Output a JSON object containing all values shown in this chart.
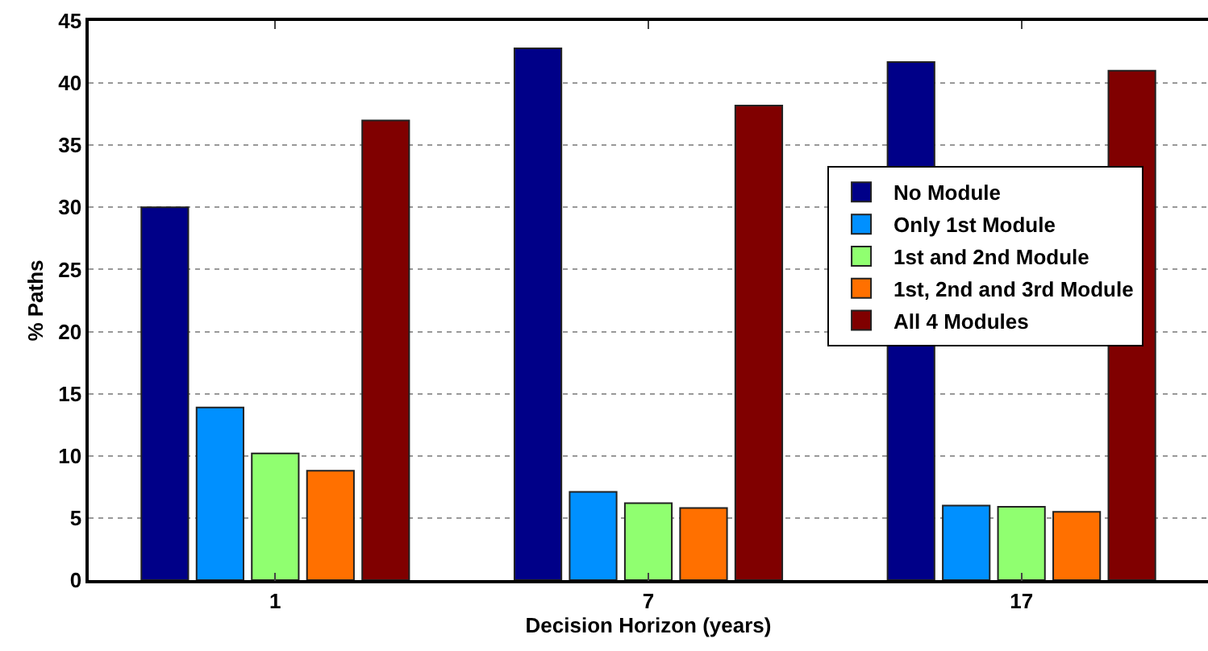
{
  "chart_data": {
    "type": "bar",
    "xlabel": "Decision Horizon (years)",
    "ylabel": "% Paths",
    "categories": [
      "1",
      "7",
      "17"
    ],
    "series": [
      {
        "name": "No Module",
        "color": "#000088",
        "values": [
          30.0,
          42.8,
          41.7
        ]
      },
      {
        "name": "Only 1st Module",
        "color": "#0090ff",
        "values": [
          13.9,
          7.1,
          6.0
        ]
      },
      {
        "name": "1st and 2nd Module",
        "color": "#90ff70",
        "values": [
          10.2,
          6.2,
          5.9
        ]
      },
      {
        "name": "1st, 2nd and 3rd Module",
        "color": "#ff7000",
        "values": [
          8.8,
          5.8,
          5.5
        ]
      },
      {
        "name": "All 4 Modules",
        "color": "#800000",
        "values": [
          37.0,
          38.2,
          41.0
        ]
      }
    ],
    "ylim": [
      0,
      45
    ],
    "yticks": [
      0,
      5,
      10,
      15,
      20,
      25,
      30,
      35,
      40,
      45
    ],
    "grid": "y",
    "legend": "top right"
  }
}
